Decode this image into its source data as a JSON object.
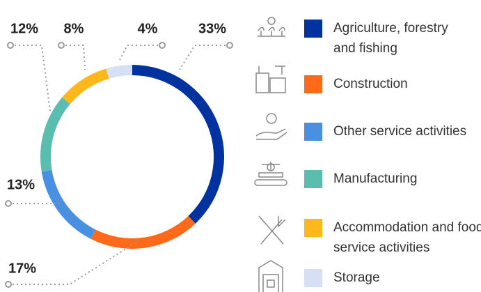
{
  "chart_data": {
    "type": "donut",
    "categories": [
      "Agriculture, forestry and fishing",
      "Construction",
      "Other service activities",
      "Manufacturing",
      "Accommodation and food service activities",
      "Storage"
    ],
    "values": [
      33,
      17,
      13,
      12,
      8,
      4
    ],
    "value_labels": [
      "33%",
      "17%",
      "13%",
      "12%",
      "8%",
      "4%"
    ],
    "colors": [
      "#0033a0",
      "#ff6a1a",
      "#4a90e2",
      "#5bbcb0",
      "#ffb81c",
      "#d6e0f5"
    ]
  }
}
